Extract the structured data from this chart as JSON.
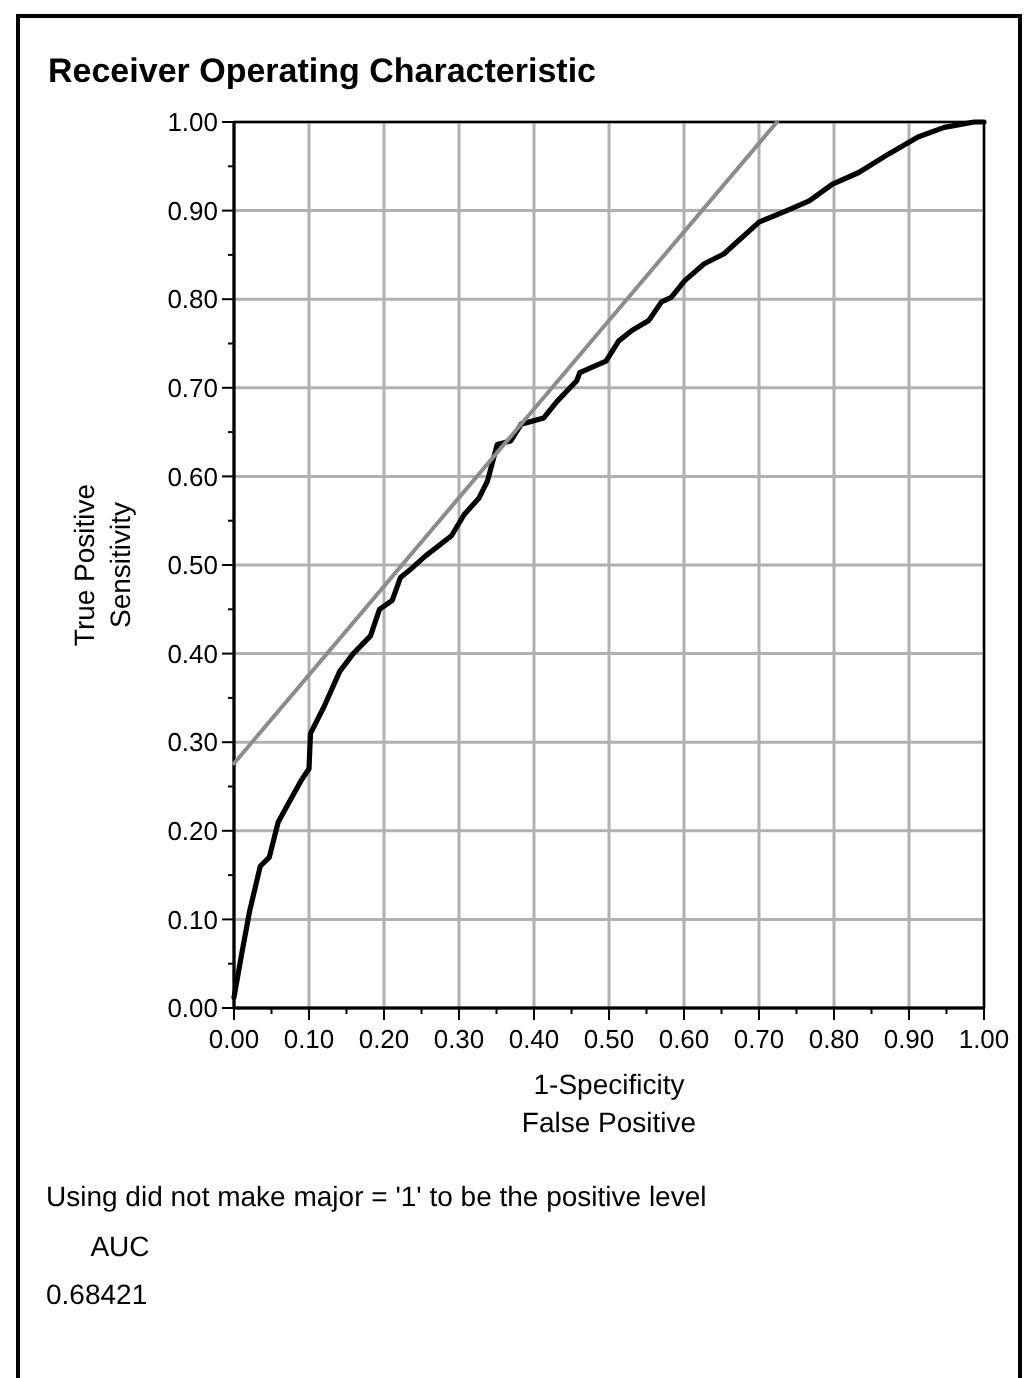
{
  "chart_data": {
    "type": "line",
    "title": "Receiver Operating Characteristic",
    "xlabel": "1-Specificity\nFalse Positive",
    "ylabel": "True Positive\nSensitivity",
    "xlim": [
      0,
      1
    ],
    "ylim": [
      0,
      1
    ],
    "xticks": [
      {
        "value": 0,
        "label": "0.00"
      },
      {
        "value": 0.05,
        "label": null
      },
      {
        "value": 0.1,
        "label": "0.10"
      },
      {
        "value": 0.15,
        "label": null
      },
      {
        "value": 0.2,
        "label": "0.20"
      },
      {
        "value": 0.25,
        "label": null
      },
      {
        "value": 0.3,
        "label": "0.30"
      },
      {
        "value": 0.35,
        "label": null
      },
      {
        "value": 0.4,
        "label": "0.40"
      },
      {
        "value": 0.45,
        "label": null
      },
      {
        "value": 0.5,
        "label": "0.50"
      },
      {
        "value": 0.55,
        "label": null
      },
      {
        "value": 0.6,
        "label": "0.60"
      },
      {
        "value": 0.65,
        "label": null
      },
      {
        "value": 0.7,
        "label": "0.70"
      },
      {
        "value": 0.75,
        "label": null
      },
      {
        "value": 0.8,
        "label": "0.80"
      },
      {
        "value": 0.85,
        "label": null
      },
      {
        "value": 0.9,
        "label": "0.90"
      },
      {
        "value": 0.95,
        "label": null
      },
      {
        "value": 1,
        "label": "1.00"
      }
    ],
    "yticks": [
      {
        "value": 0,
        "label": "0.00"
      },
      {
        "value": 0.05,
        "label": null
      },
      {
        "value": 0.1,
        "label": "0.10"
      },
      {
        "value": 0.15,
        "label": null
      },
      {
        "value": 0.2,
        "label": "0.20"
      },
      {
        "value": 0.25,
        "label": null
      },
      {
        "value": 0.3,
        "label": "0.30"
      },
      {
        "value": 0.35,
        "label": null
      },
      {
        "value": 0.4,
        "label": "0.40"
      },
      {
        "value": 0.45,
        "label": null
      },
      {
        "value": 0.5,
        "label": "0.50"
      },
      {
        "value": 0.55,
        "label": null
      },
      {
        "value": 0.6,
        "label": "0.60"
      },
      {
        "value": 0.65,
        "label": null
      },
      {
        "value": 0.7,
        "label": "0.70"
      },
      {
        "value": 0.75,
        "label": null
      },
      {
        "value": 0.8,
        "label": "0.80"
      },
      {
        "value": 0.85,
        "label": null
      },
      {
        "value": 0.9,
        "label": "0.90"
      },
      {
        "value": 0.95,
        "label": null
      },
      {
        "value": 1,
        "label": "1.00"
      }
    ],
    "grid": true,
    "marker": "none",
    "line_style": "solid",
    "series": [
      {
        "color": "#000000",
        "x": [
          0,
          0.01,
          0.021,
          0.035,
          0.047,
          0.059,
          0.072,
          0.089,
          0.1,
          0.102,
          0.12,
          0.141,
          0.159,
          0.182,
          0.194,
          0.211,
          0.222,
          0.238,
          0.255,
          0.29,
          0.307,
          0.327,
          0.338,
          0.351,
          0.369,
          0.383,
          0.413,
          0.431,
          0.457,
          0.461,
          0.496,
          0.513,
          0.531,
          0.553,
          0.57,
          0.583,
          0.601,
          0.627,
          0.653,
          0.7,
          0.737,
          0.767,
          0.798,
          0.833,
          0.873,
          0.912,
          0.947,
          0.987,
          1
        ],
        "values": [
          0.012,
          0.06,
          0.11,
          0.16,
          0.17,
          0.21,
          0.23,
          0.256,
          0.27,
          0.31,
          0.34,
          0.38,
          0.4,
          0.42,
          0.45,
          0.46,
          0.486,
          0.497,
          0.51,
          0.533,
          0.557,
          0.576,
          0.595,
          0.636,
          0.64,
          0.659,
          0.666,
          0.685,
          0.708,
          0.717,
          0.73,
          0.753,
          0.765,
          0.776,
          0.797,
          0.802,
          0.821,
          0.84,
          0.851,
          0.887,
          0.9,
          0.911,
          0.93,
          0.943,
          0.964,
          0.983,
          0.994,
          1,
          1
        ]
      },
      {
        "color": "#8c8c8c",
        "x": [
          0,
          0.724
        ],
        "values": [
          0.276,
          1
        ]
      }
    ],
    "annotations": [
      "Using did not make major = '1' to be the positive level",
      "AUC",
      "0.68421"
    ]
  }
}
